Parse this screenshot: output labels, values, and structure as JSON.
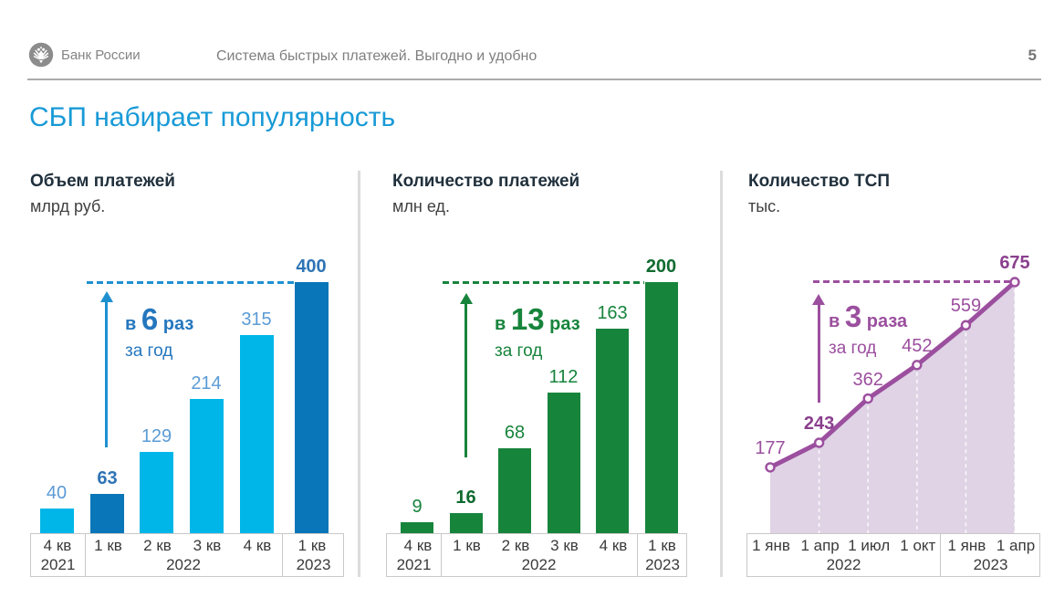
{
  "header": {
    "brand": "Банк России",
    "doc_title": "Система быстрых платежей. Выгодно и удобно",
    "page_number": "5"
  },
  "slide": {
    "title": "СБП набирает популярность",
    "title_color": "#189ad6"
  },
  "chart_data": [
    {
      "type": "bar",
      "title": "Объем платежей",
      "unit": "млрд руб.",
      "categories": [
        "4 кв",
        "1 кв",
        "2 кв",
        "3 кв",
        "4 кв",
        "1 кв"
      ],
      "year_groups": [
        "2021",
        "2022",
        "2023"
      ],
      "values": [
        40,
        63,
        129,
        214,
        315,
        400
      ],
      "highlight_indices": [
        1,
        5
      ],
      "ylim": [
        0,
        400
      ],
      "grid": false,
      "annotation": {
        "prefix": "в",
        "multiplier": "6",
        "suffix": "раз",
        "caption": "за год"
      },
      "colors": {
        "bar": "#00b6e8",
        "bar_highlight": "#0876b8",
        "value_label": "#5b9bd5",
        "value_label_highlight": "#2e74b5",
        "accent": "#1e90d0",
        "annotation": "#2577be"
      }
    },
    {
      "type": "bar",
      "title": "Количество платежей",
      "unit": "млн ед.",
      "categories": [
        "4 кв",
        "1 кв",
        "2 кв",
        "3 кв",
        "4 кв",
        "1 кв"
      ],
      "year_groups": [
        "2021",
        "2022",
        "2023"
      ],
      "values": [
        9,
        16,
        68,
        112,
        163,
        200
      ],
      "highlight_indices": [
        1,
        5
      ],
      "ylim": [
        0,
        200
      ],
      "grid": false,
      "annotation": {
        "prefix": "в",
        "multiplier": "13",
        "suffix": "раз",
        "caption": "за год"
      },
      "colors": {
        "bar": "#17843c",
        "bar_highlight": "#17843c",
        "value_label": "#17843c",
        "value_label_highlight": "#106b30",
        "accent": "#17843c",
        "annotation": "#17843c"
      }
    },
    {
      "type": "area",
      "title": "Количество ТСП",
      "unit": "тыс.",
      "categories": [
        "1 янв",
        "1 апр",
        "1 июл",
        "1 окт",
        "1 янв",
        "1 апр"
      ],
      "year_groups": [
        "2022",
        "2023"
      ],
      "values": [
        177,
        243,
        362,
        452,
        559,
        675
      ],
      "highlight_indices": [
        1,
        5
      ],
      "ylim": [
        0,
        675
      ],
      "grid": false,
      "annotation": {
        "prefix": "в",
        "multiplier": "3",
        "suffix": "раза",
        "caption": "за год"
      },
      "colors": {
        "line": "#9b4f9e",
        "fill": "#dfd3e5",
        "marker_fill": "#fbf4fa",
        "value_label": "#9b4f9e",
        "value_label_highlight": "#8a3f8d",
        "accent": "#9b4f9e",
        "annotation": "#9b4f9e"
      }
    }
  ]
}
